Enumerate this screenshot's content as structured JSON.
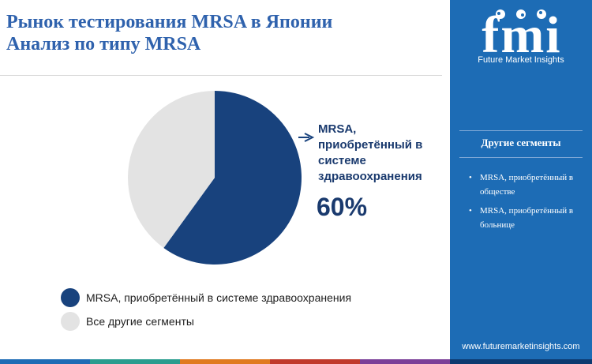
{
  "header": {
    "title_line1": "Рынок тестирования MRSA в Японии",
    "title_line2": "Анализ по типу MRSA"
  },
  "chart_data": {
    "type": "pie",
    "categories": [
      "MRSA, приобретённый в системе здравоохранения",
      "Все другие сегменты"
    ],
    "values": [
      60,
      40
    ],
    "colors": [
      "#18427d",
      "#e3e3e3"
    ],
    "start_angle_deg": 0,
    "direction": "clockwise",
    "callout": {
      "label": "MRSA, приобретённый в системе здравоохранения",
      "value": "60%"
    },
    "legend_position": "bottom-left"
  },
  "legend": {
    "items": [
      {
        "label": "MRSA, приобретённый в системе здравоохранения",
        "color": "#18427d"
      },
      {
        "label": "Все другие сегменты",
        "color": "#e3e3e3"
      }
    ]
  },
  "sidebar": {
    "logo_text": "fmi",
    "logo_subtitle": "Future Market Insights",
    "heading": "Другие сегменты",
    "items": [
      "MRSA, приобретённый в обществе",
      "MRSA, приобретённый в больнице"
    ],
    "url": "www.futuremarketinsights.com",
    "background_color": "#1d6cb5"
  },
  "bottom_bar_colors": [
    "#1d6cb5",
    "#2a9d8f",
    "#e07a1f",
    "#c0392b",
    "#7b3f98"
  ]
}
